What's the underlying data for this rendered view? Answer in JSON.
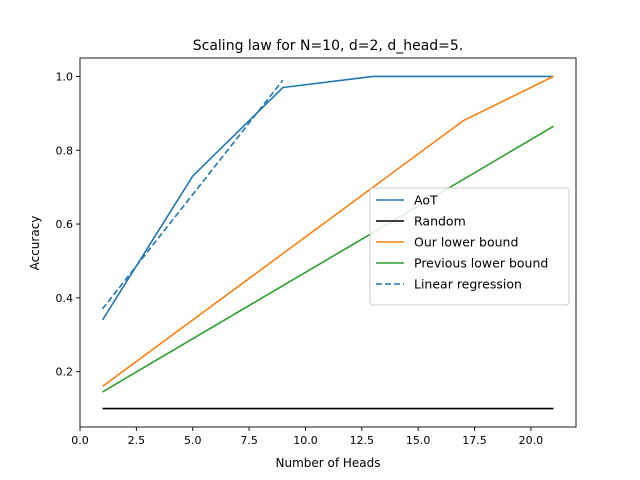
{
  "chart_data": {
    "type": "line",
    "title": "Scaling law for N=10, d=2, d_head=5.",
    "xlabel": "Number of Heads",
    "ylabel": "Accuracy",
    "xlim": [
      0.0,
      22.0
    ],
    "ylim": [
      0.05,
      1.05
    ],
    "xticks": [
      0.0,
      2.5,
      5.0,
      7.5,
      10.0,
      12.5,
      15.0,
      17.5,
      20.0
    ],
    "xtick_labels": [
      "0.0",
      "2.5",
      "5.0",
      "7.5",
      "10.0",
      "12.5",
      "15.0",
      "17.5",
      "20.0"
    ],
    "yticks": [
      0.2,
      0.4,
      0.6,
      0.8,
      1.0
    ],
    "ytick_labels": [
      "0.2",
      "0.4",
      "0.6",
      "0.8",
      "1.0"
    ],
    "legend_position": "center-right",
    "series": [
      {
        "name": "AoT",
        "color": "#1f77b4",
        "dash": "solid",
        "x": [
          1,
          5,
          9,
          13,
          17,
          21
        ],
        "y": [
          0.34,
          0.73,
          0.97,
          1.0,
          1.0,
          1.0
        ]
      },
      {
        "name": "Random",
        "color": "#000000",
        "dash": "solid",
        "x": [
          1,
          21
        ],
        "y": [
          0.1,
          0.1
        ]
      },
      {
        "name": "Our lower bound",
        "color": "#ff7f0e",
        "dash": "solid",
        "x": [
          1,
          17,
          21
        ],
        "y": [
          0.16,
          0.88,
          1.0
        ]
      },
      {
        "name": "Previous lower bound",
        "color": "#2ca02c",
        "dash": "solid",
        "x": [
          1,
          21
        ],
        "y": [
          0.145,
          0.865
        ]
      },
      {
        "name": "Linear regression",
        "color": "#1f77b4",
        "dash": "dashed",
        "x": [
          1,
          9
        ],
        "y": [
          0.37,
          0.99
        ]
      }
    ]
  }
}
